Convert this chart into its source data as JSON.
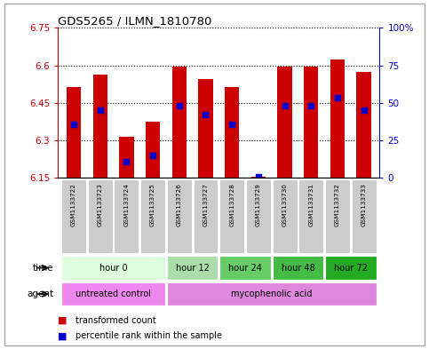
{
  "title": "GDS5265 / ILMN_1810780",
  "samples": [
    "GSM1133722",
    "GSM1133723",
    "GSM1133724",
    "GSM1133725",
    "GSM1133726",
    "GSM1133727",
    "GSM1133728",
    "GSM1133729",
    "GSM1133730",
    "GSM1133731",
    "GSM1133732",
    "GSM1133733"
  ],
  "bar_bottoms": [
    6.15,
    6.15,
    6.15,
    6.15,
    6.15,
    6.15,
    6.15,
    6.15,
    6.15,
    6.15,
    6.15,
    6.15
  ],
  "bar_tops": [
    6.515,
    6.565,
    6.315,
    6.375,
    6.595,
    6.545,
    6.515,
    6.155,
    6.595,
    6.595,
    6.625,
    6.575
  ],
  "blue_dots": [
    6.365,
    6.42,
    6.215,
    6.24,
    6.44,
    6.405,
    6.365,
    6.155,
    6.44,
    6.44,
    6.47,
    6.42
  ],
  "ylim_left": [
    6.15,
    6.75
  ],
  "ylim_right": [
    0,
    100
  ],
  "yticks_left": [
    6.15,
    6.3,
    6.45,
    6.6,
    6.75
  ],
  "yticks_right": [
    0,
    25,
    50,
    75,
    100
  ],
  "ytick_labels_left": [
    "6.15",
    "6.3",
    "6.45",
    "6.6",
    "6.75"
  ],
  "ytick_labels_right": [
    "0",
    "25",
    "50",
    "75",
    "100%"
  ],
  "bar_color": "#cc0000",
  "dot_color": "#0000cc",
  "bg_color": "#ffffff",
  "grid_color": "#000000",
  "time_groups": [
    {
      "label": "hour 0",
      "start": 0,
      "end": 4,
      "color": "#ddffdd"
    },
    {
      "label": "hour 12",
      "start": 4,
      "end": 6,
      "color": "#aaddaa"
    },
    {
      "label": "hour 24",
      "start": 6,
      "end": 8,
      "color": "#66cc66"
    },
    {
      "label": "hour 48",
      "start": 8,
      "end": 10,
      "color": "#44bb44"
    },
    {
      "label": "hour 72",
      "start": 10,
      "end": 12,
      "color": "#22aa22"
    }
  ],
  "agent_groups": [
    {
      "label": "untreated control",
      "start": 0,
      "end": 4,
      "color": "#ee88ee"
    },
    {
      "label": "mycophenolic acid",
      "start": 4,
      "end": 12,
      "color": "#dd88dd"
    }
  ],
  "left_axis_color": "#cc0000",
  "right_axis_color": "#0000cc",
  "title_color": "#000000",
  "sample_bg_color": "#cccccc",
  "bar_width": 0.55,
  "n_samples": 12,
  "legend_items": [
    {
      "color": "#cc0000",
      "label": "transformed count"
    },
    {
      "color": "#0000cc",
      "label": "percentile rank within the sample"
    }
  ]
}
